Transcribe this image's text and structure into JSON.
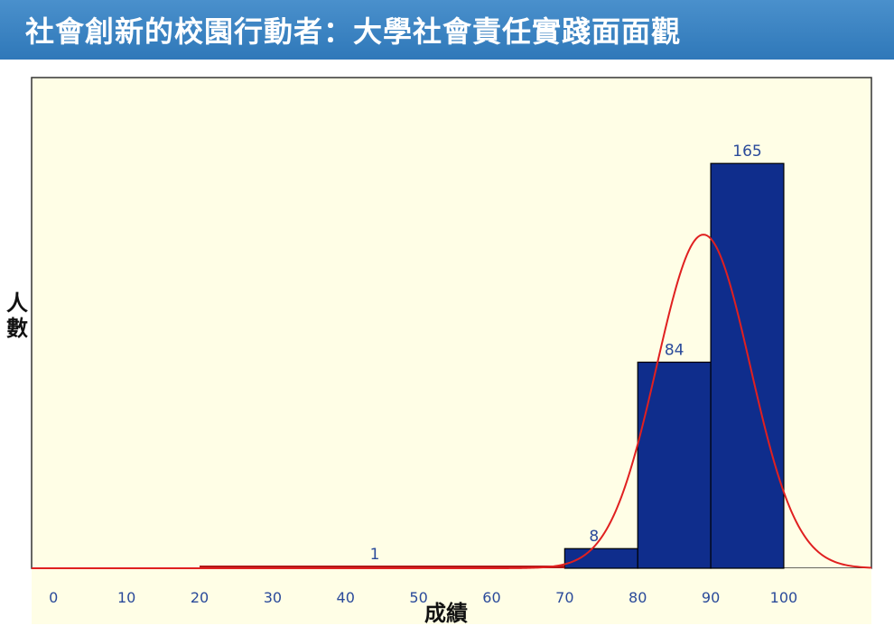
{
  "header": {
    "title": "社會創新的校園行動者：大學社會責任實踐面面觀"
  },
  "colors": {
    "header_bg": "#3a84c4",
    "plot_bg": "#fffee6",
    "bar_fill": "#0f2d8c",
    "curve": "#e02020",
    "tick_text": "#2a4a9a"
  },
  "chart_data": {
    "type": "bar",
    "title": "",
    "xlabel": "成績",
    "ylabel": "人數",
    "xlim": [
      -3,
      112
    ],
    "ylim": [
      0,
      200
    ],
    "x_ticks": [
      "0",
      "10",
      "20",
      "30",
      "40",
      "50",
      "60",
      "70",
      "80",
      "90",
      "100"
    ],
    "bins": [
      {
        "start": 70,
        "end": 80,
        "value": 8,
        "label": "8"
      },
      {
        "start": 80,
        "end": 90,
        "value": 84,
        "label": "84"
      },
      {
        "start": 90,
        "end": 100,
        "value": 165,
        "label": "165"
      }
    ],
    "low_annotation": {
      "x": 44,
      "label": "1"
    },
    "normal_curve": {
      "mean": 89,
      "sd": 6.4,
      "peak": 136
    },
    "grid": false,
    "legend": "none"
  }
}
